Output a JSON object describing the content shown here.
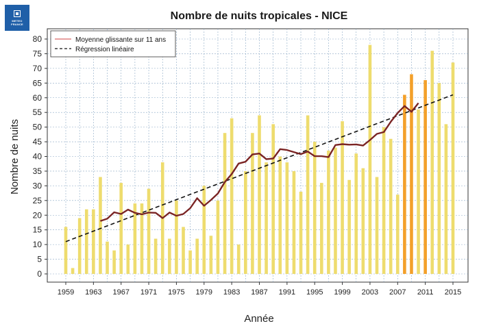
{
  "logo": {
    "line1": "METEO",
    "line2": "FRANCE"
  },
  "chart_data": {
    "type": "bar",
    "title": "Nombre de nuits tropicales  - NICE",
    "xlabel": "Année",
    "ylabel": "Nombre de nuits",
    "ylim": [
      0,
      80
    ],
    "yticks": [
      0,
      5,
      10,
      15,
      20,
      25,
      30,
      35,
      40,
      45,
      50,
      55,
      60,
      65,
      70,
      75,
      80
    ],
    "xtick_labels": [
      "1959",
      "1963",
      "1967",
      "1971",
      "1975",
      "1979",
      "1983",
      "1987",
      "1991",
      "1995",
      "1999",
      "2003",
      "2007",
      "2011",
      "2015"
    ],
    "grid": true,
    "legend_position": "top-left",
    "years": [
      1959,
      1960,
      1961,
      1962,
      1963,
      1964,
      1965,
      1966,
      1967,
      1968,
      1969,
      1970,
      1971,
      1972,
      1973,
      1974,
      1975,
      1976,
      1977,
      1978,
      1979,
      1980,
      1981,
      1982,
      1983,
      1984,
      1985,
      1986,
      1987,
      1988,
      1989,
      1990,
      1991,
      1992,
      1993,
      1994,
      1995,
      1996,
      1997,
      1998,
      1999,
      2000,
      2001,
      2002,
      2003,
      2004,
      2005,
      2006,
      2007,
      2008,
      2009,
      2010,
      2011,
      2012,
      2013,
      2014,
      2015
    ],
    "values": [
      16,
      2,
      19,
      22,
      22,
      33,
      11,
      8,
      31,
      10,
      24,
      24,
      29,
      12,
      38,
      12,
      25,
      16,
      8,
      12,
      30,
      13,
      25,
      48,
      53,
      10,
      35,
      48,
      54,
      38,
      51,
      40,
      38,
      35,
      28,
      54,
      45,
      31,
      42,
      43,
      52,
      32,
      41,
      36,
      78,
      33,
      50,
      46,
      27,
      61,
      68,
      56,
      66,
      76,
      65,
      51,
      72
    ],
    "highlight_years": [
      2008,
      2009,
      2011
    ],
    "colors": {
      "bar": "#eedc6e",
      "bar_highlight": "#f3a02a",
      "moving_average": "#7a2424",
      "regression": "#111111",
      "grid": "#8aa8c4"
    },
    "series": [
      {
        "name": "Moyenne glissante sur 11 ans",
        "type": "line",
        "x": [
          1964,
          1965,
          1966,
          1967,
          1968,
          1969,
          1970,
          1971,
          1972,
          1973,
          1974,
          1975,
          1976,
          1977,
          1978,
          1979,
          1980,
          1981,
          1982,
          1983,
          1984,
          1985,
          1986,
          1987,
          1988,
          1989,
          1990,
          1991,
          1992,
          1993,
          1994,
          1995,
          1996,
          1997,
          1998,
          1999,
          2000,
          2001,
          2002,
          2003,
          2004,
          2005,
          2006,
          2007,
          2008,
          2009,
          2010
        ],
        "values": [
          18,
          18.8,
          21,
          20.4,
          21.9,
          20.8,
          20.3,
          20.9,
          20.8,
          19,
          20.9,
          19.8,
          20.4,
          22.4,
          25.8,
          23.2,
          25.2,
          27.4,
          31.3,
          34,
          37.6,
          38.2,
          40.7,
          41,
          39.1,
          39.3,
          42.5,
          42.2,
          41.5,
          40.8,
          41.7,
          40.1,
          40.1,
          39.8,
          43.9,
          44.2,
          44,
          44.1,
          43.7,
          45.6,
          47.7,
          48.3,
          51.8,
          54.8,
          57.2,
          55.2,
          58.2
        ]
      },
      {
        "name": "Régression linéaire",
        "type": "line",
        "x": [
          1959,
          2015
        ],
        "values": [
          11,
          61
        ]
      }
    ]
  }
}
